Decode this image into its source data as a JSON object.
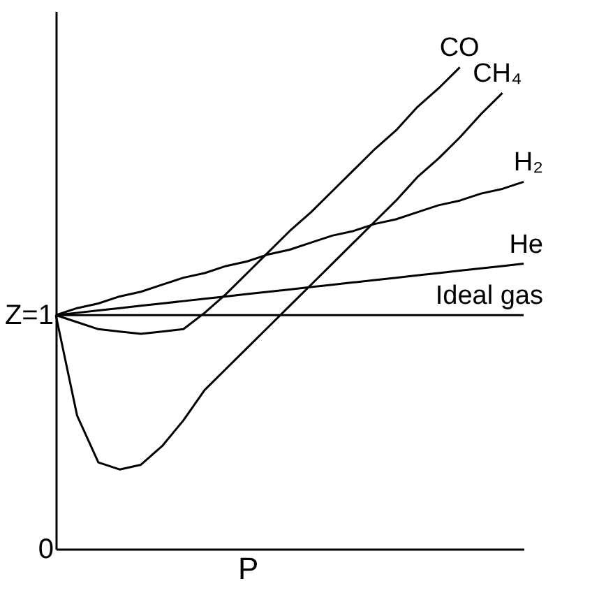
{
  "chart_data": {
    "type": "line",
    "xlabel": "P",
    "categories": [
      null,
      null,
      null,
      null,
      null,
      null,
      null,
      null,
      null,
      null,
      null,
      null,
      null,
      null,
      null,
      null,
      null,
      null,
      null,
      null,
      null,
      null,
      null
    ],
    "series": [
      {
        "name": "CO",
        "color": "#000000",
        "values": [
          1.0,
          0.97,
          0.94,
          0.93,
          0.92,
          0.93,
          0.94,
          1.01,
          1.09,
          1.18,
          1.27,
          1.36,
          1.44,
          1.53,
          1.62,
          1.71,
          1.79,
          1.89,
          1.97,
          2.06,
          null,
          null,
          null
        ]
      },
      {
        "name": "CH₄",
        "color": "#000000",
        "values": [
          1.0,
          0.57,
          0.37,
          0.34,
          0.36,
          0.44,
          0.55,
          0.68,
          0.77,
          0.86,
          0.95,
          1.04,
          1.13,
          1.22,
          1.31,
          1.4,
          1.49,
          1.59,
          1.67,
          1.76,
          1.86,
          1.95,
          null
        ]
      },
      {
        "name": "H₂",
        "color": "#000000",
        "values": [
          1.0,
          1.03,
          1.05,
          1.08,
          1.1,
          1.13,
          1.16,
          1.18,
          1.21,
          1.23,
          1.26,
          1.28,
          1.31,
          1.34,
          1.36,
          1.39,
          1.41,
          1.44,
          1.47,
          1.49,
          1.52,
          1.54,
          1.57
        ]
      },
      {
        "name": "He",
        "color": "#000000",
        "values": [
          1.0,
          1.01,
          1.02,
          1.03,
          1.04,
          1.05,
          1.06,
          1.07,
          1.08,
          1.09,
          1.1,
          1.11,
          1.12,
          1.13,
          1.14,
          1.15,
          1.16,
          1.17,
          1.18,
          1.19,
          1.2,
          1.21,
          1.22
        ]
      },
      {
        "name": "Ideal gas",
        "color": "#000000",
        "values": [
          1,
          1,
          1,
          1,
          1,
          1,
          1,
          1,
          1,
          1,
          1,
          1,
          1,
          1,
          1,
          1,
          1,
          1,
          1,
          1,
          1,
          1,
          1
        ]
      }
    ],
    "ylim": [
      0,
      2.3
    ],
    "yticks": [
      0,
      {
        "value": 1,
        "label": "Z=1"
      }
    ],
    "tick_labels": "y",
    "grid": false,
    "marker": "none",
    "line_style": "solid"
  }
}
